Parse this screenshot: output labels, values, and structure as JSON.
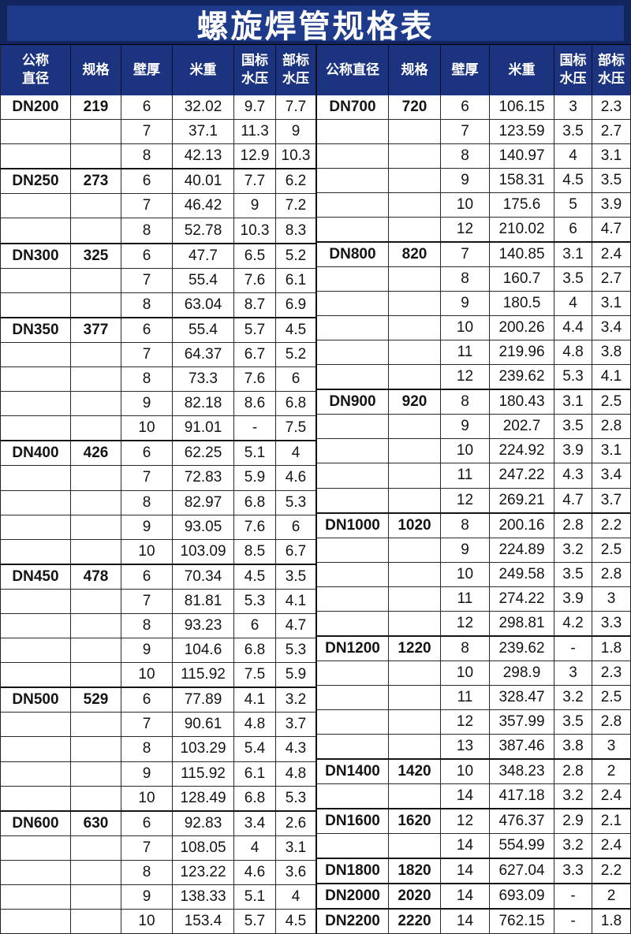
{
  "title": "螺旋焊管规格表",
  "colors": {
    "frame": "#13255e",
    "title_bg": "#1e3a8a",
    "header_bg": "#1c3480",
    "grid_line": "#2a2a2a"
  },
  "halves": [
    {
      "id": "left",
      "headers": [
        "公称\n直径",
        "规格",
        "壁厚",
        "米重",
        "国标\n水压",
        "部标\n水压"
      ],
      "groups": [
        {
          "dn": "DN200",
          "spec": "219",
          "rows": [
            [
              "6",
              "32.02",
              "9.7",
              "7.7"
            ],
            [
              "7",
              "37.1",
              "11.3",
              "9"
            ],
            [
              "8",
              "42.13",
              "12.9",
              "10.3"
            ]
          ]
        },
        {
          "dn": "DN250",
          "spec": "273",
          "rows": [
            [
              "6",
              "40.01",
              "7.7",
              "6.2"
            ],
            [
              "7",
              "46.42",
              "9",
              "7.2"
            ],
            [
              "8",
              "52.78",
              "10.3",
              "8.3"
            ]
          ]
        },
        {
          "dn": "DN300",
          "spec": "325",
          "rows": [
            [
              "6",
              "47.7",
              "6.5",
              "5.2"
            ],
            [
              "7",
              "55.4",
              "7.6",
              "6.1"
            ],
            [
              "8",
              "63.04",
              "8.7",
              "6.9"
            ]
          ]
        },
        {
          "dn": "DN350",
          "spec": "377",
          "rows": [
            [
              "6",
              "55.4",
              "5.7",
              "4.5"
            ],
            [
              "7",
              "64.37",
              "6.7",
              "5.2"
            ],
            [
              "8",
              "73.3",
              "7.6",
              "6"
            ],
            [
              "9",
              "82.18",
              "8.6",
              "6.8"
            ],
            [
              "10",
              "91.01",
              "-",
              "7.5"
            ]
          ]
        },
        {
          "dn": "DN400",
          "spec": "426",
          "rows": [
            [
              "6",
              "62.25",
              "5.1",
              "4"
            ],
            [
              "7",
              "72.83",
              "5.9",
              "4.6"
            ],
            [
              "8",
              "82.97",
              "6.8",
              "5.3"
            ],
            [
              "9",
              "93.05",
              "7.6",
              "6"
            ],
            [
              "10",
              "103.09",
              "8.5",
              "6.7"
            ]
          ]
        },
        {
          "dn": "DN450",
          "spec": "478",
          "rows": [
            [
              "6",
              "70.34",
              "4.5",
              "3.5"
            ],
            [
              "7",
              "81.81",
              "5.3",
              "4.1"
            ],
            [
              "8",
              "93.23",
              "6",
              "4.7"
            ],
            [
              "9",
              "104.6",
              "6.8",
              "5.3"
            ],
            [
              "10",
              "115.92",
              "7.5",
              "5.9"
            ]
          ]
        },
        {
          "dn": "DN500",
          "spec": "529",
          "rows": [
            [
              "6",
              "77.89",
              "4.1",
              "3.2"
            ],
            [
              "7",
              "90.61",
              "4.8",
              "3.7"
            ],
            [
              "8",
              "103.29",
              "5.4",
              "4.3"
            ],
            [
              "9",
              "115.92",
              "6.1",
              "4.8"
            ],
            [
              "10",
              "128.49",
              "6.8",
              "5.3"
            ]
          ]
        },
        {
          "dn": "DN600",
          "spec": "630",
          "rows": [
            [
              "6",
              "92.83",
              "3.4",
              "2.6"
            ],
            [
              "7",
              "108.05",
              "4",
              "3.1"
            ],
            [
              "8",
              "123.22",
              "4.6",
              "3.6"
            ],
            [
              "9",
              "138.33",
              "5.1",
              "4"
            ],
            [
              "10",
              "153.4",
              "5.7",
              "4.5"
            ]
          ]
        }
      ]
    },
    {
      "id": "right",
      "headers": [
        "公称直径",
        "规格",
        "壁厚",
        "米重",
        "国标\n水压",
        "部标\n水压"
      ],
      "groups": [
        {
          "dn": "DN700",
          "spec": "720",
          "rows": [
            [
              "6",
              "106.15",
              "3",
              "2.3"
            ],
            [
              "7",
              "123.59",
              "3.5",
              "2.7"
            ],
            [
              "8",
              "140.97",
              "4",
              "3.1"
            ],
            [
              "9",
              "158.31",
              "4.5",
              "3.5"
            ],
            [
              "10",
              "175.6",
              "5",
              "3.9"
            ],
            [
              "12",
              "210.02",
              "6",
              "4.7"
            ]
          ]
        },
        {
          "dn": "DN800",
          "spec": "820",
          "rows": [
            [
              "7",
              "140.85",
              "3.1",
              "2.4"
            ],
            [
              "8",
              "160.7",
              "3.5",
              "2.7"
            ],
            [
              "9",
              "180.5",
              "4",
              "3.1"
            ],
            [
              "10",
              "200.26",
              "4.4",
              "3.4"
            ],
            [
              "11",
              "219.96",
              "4.8",
              "3.8"
            ],
            [
              "12",
              "239.62",
              "5.3",
              "4.1"
            ]
          ]
        },
        {
          "dn": "DN900",
          "spec": "920",
          "rows": [
            [
              "8",
              "180.43",
              "3.1",
              "2.5"
            ],
            [
              "9",
              "202.7",
              "3.5",
              "2.8"
            ],
            [
              "10",
              "224.92",
              "3.9",
              "3.1"
            ],
            [
              "11",
              "247.22",
              "4.3",
              "3.4"
            ],
            [
              "12",
              "269.21",
              "4.7",
              "3.7"
            ]
          ]
        },
        {
          "dn": "DN1000",
          "spec": "1020",
          "rows": [
            [
              "8",
              "200.16",
              "2.8",
              "2.2"
            ],
            [
              "9",
              "224.89",
              "3.2",
              "2.5"
            ],
            [
              "10",
              "249.58",
              "3.5",
              "2.8"
            ],
            [
              "11",
              "274.22",
              "3.9",
              "3"
            ],
            [
              "12",
              "298.81",
              "4.2",
              "3.3"
            ]
          ]
        },
        {
          "dn": "DN1200",
          "spec": "1220",
          "rows": [
            [
              "8",
              "239.62",
              "-",
              "1.8"
            ],
            [
              "10",
              "298.9",
              "3",
              "2.3"
            ],
            [
              "11",
              "328.47",
              "3.2",
              "2.5"
            ],
            [
              "12",
              "357.99",
              "3.5",
              "2.8"
            ],
            [
              "13",
              "387.46",
              "3.8",
              "3"
            ]
          ]
        },
        {
          "dn": "DN1400",
          "spec": "1420",
          "rows": [
            [
              "10",
              "348.23",
              "2.8",
              "2"
            ],
            [
              "14",
              "417.18",
              "3.2",
              "2.4"
            ]
          ]
        },
        {
          "dn": "DN1600",
          "spec": "1620",
          "rows": [
            [
              "12",
              "476.37",
              "2.9",
              "2.1"
            ],
            [
              "14",
              "554.99",
              "3.2",
              "2.4"
            ]
          ]
        },
        {
          "dn": "DN1800",
          "spec": "1820",
          "rows": [
            [
              "14",
              "627.04",
              "3.3",
              "2.2"
            ]
          ]
        },
        {
          "dn": "DN2000",
          "spec": "2020",
          "rows": [
            [
              "14",
              "693.09",
              "-",
              "2"
            ]
          ]
        },
        {
          "dn": "DN2200",
          "spec": "2220",
          "rows": [
            [
              "14",
              "762.15",
              "-",
              "1.8"
            ]
          ]
        }
      ]
    }
  ]
}
